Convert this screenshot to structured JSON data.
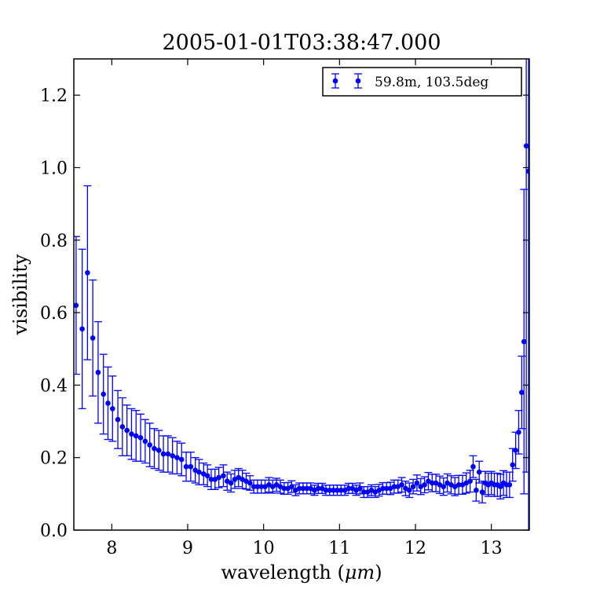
{
  "chart_data": {
    "type": "scatter",
    "title": "2005-01-01T03:38:47.000",
    "xlabel_prefix": "wavelength (",
    "xlabel_unit": "μm",
    "xlabel_suffix": ")",
    "ylabel": "visibility",
    "xlim": [
      7.5,
      13.5
    ],
    "ylim": [
      0.0,
      1.3
    ],
    "xticks": [
      8,
      9,
      10,
      11,
      12,
      13
    ],
    "xtick_labels": [
      "8",
      "9",
      "10",
      "11",
      "12",
      "13"
    ],
    "yticks": [
      0.0,
      0.2,
      0.4,
      0.6,
      0.8,
      1.0,
      1.2
    ],
    "ytick_labels": [
      "0.0",
      "0.2",
      "0.4",
      "0.6",
      "0.8",
      "1.0",
      "1.2"
    ],
    "grid": false,
    "legend_position": "top-right",
    "color": "#0000ff",
    "series": [
      {
        "name": "59.8m, 103.5deg",
        "x": [
          7.53,
          7.61,
          7.68,
          7.75,
          7.82,
          7.89,
          7.95,
          8.01,
          8.08,
          8.14,
          8.2,
          8.26,
          8.32,
          8.38,
          8.44,
          8.5,
          8.56,
          8.62,
          8.68,
          8.74,
          8.8,
          8.86,
          8.92,
          8.98,
          9.04,
          9.1,
          9.15,
          9.21,
          9.26,
          9.31,
          9.36,
          9.41,
          9.47,
          9.52,
          9.57,
          9.62,
          9.67,
          9.72,
          9.77,
          9.82,
          9.87,
          9.92,
          9.97,
          10.02,
          10.07,
          10.12,
          10.17,
          10.22,
          10.27,
          10.32,
          10.37,
          10.42,
          10.47,
          10.52,
          10.57,
          10.62,
          10.67,
          10.72,
          10.77,
          10.82,
          10.87,
          10.92,
          10.97,
          11.02,
          11.07,
          11.12,
          11.17,
          11.22,
          11.27,
          11.32,
          11.37,
          11.42,
          11.47,
          11.52,
          11.57,
          11.62,
          11.67,
          11.72,
          11.77,
          11.82,
          11.87,
          11.92,
          11.97,
          12.02,
          12.07,
          12.12,
          12.17,
          12.22,
          12.27,
          12.32,
          12.37,
          12.42,
          12.47,
          12.52,
          12.57,
          12.62,
          12.67,
          12.72,
          12.76,
          12.8,
          12.84,
          12.88,
          12.92,
          12.96,
          13.0,
          13.04,
          13.08,
          13.12,
          13.16,
          13.2,
          13.24,
          13.28,
          13.32,
          13.36,
          13.4,
          13.43,
          13.46,
          13.49
        ],
        "y": [
          0.62,
          0.555,
          0.71,
          0.53,
          0.435,
          0.375,
          0.35,
          0.335,
          0.305,
          0.285,
          0.275,
          0.265,
          0.26,
          0.255,
          0.245,
          0.235,
          0.225,
          0.22,
          0.21,
          0.21,
          0.205,
          0.2,
          0.195,
          0.175,
          0.175,
          0.165,
          0.16,
          0.155,
          0.15,
          0.14,
          0.14,
          0.145,
          0.15,
          0.135,
          0.13,
          0.14,
          0.145,
          0.14,
          0.135,
          0.13,
          0.12,
          0.12,
          0.12,
          0.12,
          0.125,
          0.12,
          0.125,
          0.12,
          0.115,
          0.115,
          0.12,
          0.11,
          0.115,
          0.115,
          0.115,
          0.115,
          0.11,
          0.115,
          0.115,
          0.11,
          0.11,
          0.11,
          0.11,
          0.11,
          0.11,
          0.115,
          0.115,
          0.11,
          0.115,
          0.105,
          0.105,
          0.11,
          0.105,
          0.11,
          0.115,
          0.115,
          0.115,
          0.12,
          0.12,
          0.125,
          0.115,
          0.11,
          0.12,
          0.13,
          0.12,
          0.125,
          0.135,
          0.13,
          0.13,
          0.125,
          0.12,
          0.13,
          0.125,
          0.12,
          0.125,
          0.125,
          0.13,
          0.135,
          0.175,
          0.11,
          0.16,
          0.105,
          0.13,
          0.125,
          0.13,
          0.125,
          0.125,
          0.12,
          0.13,
          0.125,
          0.125,
          0.18,
          0.22,
          0.27,
          0.38,
          0.52,
          1.06,
          0.99
        ],
        "yerr": [
          0.19,
          0.22,
          0.24,
          0.16,
          0.14,
          0.11,
          0.1,
          0.09,
          0.08,
          0.08,
          0.07,
          0.07,
          0.07,
          0.065,
          0.06,
          0.06,
          0.055,
          0.055,
          0.05,
          0.05,
          0.05,
          0.045,
          0.045,
          0.04,
          0.04,
          0.035,
          0.035,
          0.03,
          0.03,
          0.028,
          0.028,
          0.028,
          0.03,
          0.025,
          0.025,
          0.025,
          0.025,
          0.025,
          0.022,
          0.02,
          0.018,
          0.018,
          0.018,
          0.018,
          0.02,
          0.018,
          0.018,
          0.018,
          0.016,
          0.016,
          0.016,
          0.015,
          0.015,
          0.015,
          0.015,
          0.015,
          0.014,
          0.014,
          0.014,
          0.014,
          0.014,
          0.014,
          0.014,
          0.014,
          0.014,
          0.014,
          0.014,
          0.014,
          0.015,
          0.015,
          0.015,
          0.015,
          0.015,
          0.016,
          0.016,
          0.016,
          0.017,
          0.018,
          0.018,
          0.02,
          0.02,
          0.02,
          0.02,
          0.022,
          0.022,
          0.022,
          0.024,
          0.024,
          0.024,
          0.024,
          0.024,
          0.025,
          0.025,
          0.025,
          0.026,
          0.026,
          0.028,
          0.03,
          0.03,
          0.03,
          0.03,
          0.03,
          0.032,
          0.032,
          0.032,
          0.032,
          0.032,
          0.034,
          0.034,
          0.035,
          0.035,
          0.045,
          0.05,
          0.06,
          0.1,
          0.42,
          0.9,
          1.0
        ]
      }
    ]
  }
}
